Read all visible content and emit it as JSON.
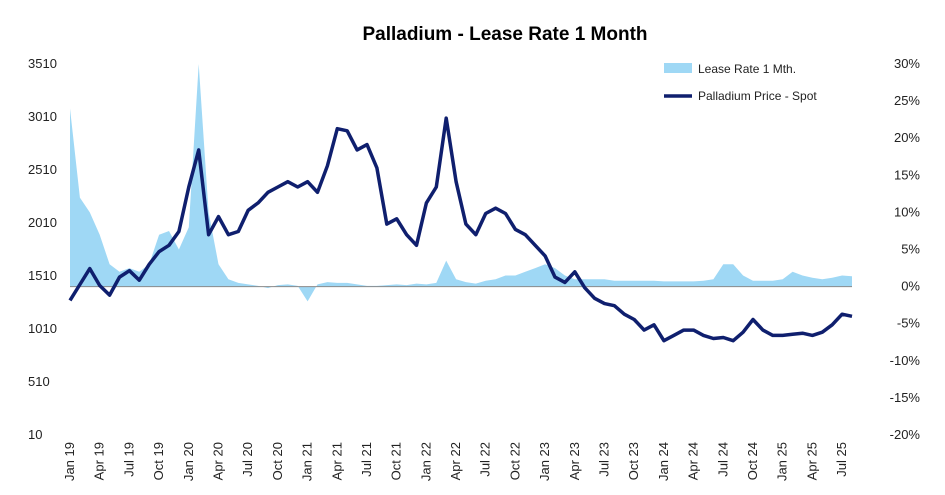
{
  "chart_data": {
    "type": "line",
    "title": "Palladium - Lease Rate 1 Month",
    "x_categories": [
      "Jan 19",
      "Apr 19",
      "Jul 19",
      "Oct 19",
      "Jan 20",
      "Apr 20",
      "Jul 20",
      "Oct 20",
      "Jan 21",
      "Apr 21",
      "Jul 21",
      "Oct 21",
      "Jan 22",
      "Apr 22",
      "Jul 22",
      "Oct 22",
      "Jan 23",
      "Apr 23",
      "Jul 23",
      "Oct 23",
      "Jan 24",
      "Apr 24",
      "Jul 24",
      "Oct 24",
      "Jan 25",
      "Apr 25",
      "Jul 25"
    ],
    "y_left": {
      "ticks": [
        "3510",
        "3010",
        "2510",
        "2010",
        "1510",
        "1010",
        "510",
        "10"
      ],
      "min": 10,
      "max": 3510
    },
    "y_right": {
      "ticks": [
        "30%",
        "25%",
        "20%",
        "15%",
        "10%",
        "5%",
        "0%",
        "-5%",
        "-10%",
        "-15%",
        "-20%"
      ],
      "min": -20,
      "max": 30,
      "unit": "%"
    },
    "legend": {
      "position": "top-right"
    },
    "series": [
      {
        "name": "Lease Rate 1 Mth.",
        "style": "area",
        "axis": "right",
        "color": "#9fd8f5",
        "points": [
          [
            "Jan 19",
            24.0
          ],
          [
            "Feb 19",
            12.0
          ],
          [
            "Mar 19",
            10.0
          ],
          [
            "Apr 19",
            7.0
          ],
          [
            "May 19",
            3.0
          ],
          [
            "Jun 19",
            2.0
          ],
          [
            "Jul 19",
            2.5
          ],
          [
            "Aug 19",
            2.0
          ],
          [
            "Sep 19",
            3.0
          ],
          [
            "Oct 19",
            7.0
          ],
          [
            "Nov 19",
            7.5
          ],
          [
            "Dec 19",
            5.0
          ],
          [
            "Jan 20",
            8.0
          ],
          [
            "Feb 20",
            30.0
          ],
          [
            "Mar 20",
            10.0
          ],
          [
            "Apr 20",
            3.0
          ],
          [
            "May 20",
            1.0
          ],
          [
            "Jun 20",
            0.5
          ],
          [
            "Jul 20",
            0.3
          ],
          [
            "Aug 20",
            0.1
          ],
          [
            "Sep 20",
            -0.2
          ],
          [
            "Oct 20",
            0.2
          ],
          [
            "Nov 20",
            0.3
          ],
          [
            "Dec 20",
            0.1
          ],
          [
            "Jan 21",
            -2.0
          ],
          [
            "Feb 21",
            0.3
          ],
          [
            "Mar 21",
            0.6
          ],
          [
            "Apr 21",
            0.5
          ],
          [
            "May 21",
            0.5
          ],
          [
            "Jun 21",
            0.3
          ],
          [
            "Jul 21",
            0.1
          ],
          [
            "Aug 21",
            0.1
          ],
          [
            "Sep 21",
            0.2
          ],
          [
            "Oct 21",
            0.3
          ],
          [
            "Nov 21",
            0.2
          ],
          [
            "Dec 21",
            0.4
          ],
          [
            "Jan 22",
            0.3
          ],
          [
            "Feb 22",
            0.5
          ],
          [
            "Mar 22",
            3.5
          ],
          [
            "Apr 22",
            1.0
          ],
          [
            "May 22",
            0.6
          ],
          [
            "Jun 22",
            0.4
          ],
          [
            "Jul 22",
            0.8
          ],
          [
            "Aug 22",
            1.0
          ],
          [
            "Sep 22",
            1.5
          ],
          [
            "Oct 22",
            1.5
          ],
          [
            "Nov 22",
            2.0
          ],
          [
            "Dec 22",
            2.5
          ],
          [
            "Jan 23",
            3.0
          ],
          [
            "Feb 23",
            2.5
          ],
          [
            "Mar 23",
            1.5
          ],
          [
            "Apr 23",
            1.0
          ],
          [
            "May 23",
            1.0
          ],
          [
            "Jun 23",
            1.0
          ],
          [
            "Jul 23",
            1.0
          ],
          [
            "Aug 23",
            0.8
          ],
          [
            "Sep 23",
            0.8
          ],
          [
            "Oct 23",
            0.8
          ],
          [
            "Nov 23",
            0.8
          ],
          [
            "Dec 23",
            0.8
          ],
          [
            "Jan 24",
            0.7
          ],
          [
            "Feb 24",
            0.7
          ],
          [
            "Mar 24",
            0.7
          ],
          [
            "Apr 24",
            0.7
          ],
          [
            "May 24",
            0.8
          ],
          [
            "Jun 24",
            1.0
          ],
          [
            "Jul 24",
            3.0
          ],
          [
            "Aug 24",
            3.0
          ],
          [
            "Sep 24",
            1.5
          ],
          [
            "Oct 24",
            0.8
          ],
          [
            "Nov 24",
            0.8
          ],
          [
            "Dec 24",
            0.8
          ],
          [
            "Jan 25",
            1.0
          ],
          [
            "Feb 25",
            2.0
          ],
          [
            "Mar 25",
            1.5
          ],
          [
            "Apr 25",
            1.2
          ],
          [
            "May 25",
            1.0
          ],
          [
            "Jun 25",
            1.2
          ],
          [
            "Jul 25",
            1.5
          ],
          [
            "Aug 25",
            1.4
          ]
        ]
      },
      {
        "name": "Palladium Price - Spot",
        "style": "line",
        "axis": "left",
        "color": "#0f1f6e",
        "points": [
          [
            "Jan 19",
            1280
          ],
          [
            "Feb 19",
            1430
          ],
          [
            "Mar 19",
            1580
          ],
          [
            "Apr 19",
            1420
          ],
          [
            "May 19",
            1330
          ],
          [
            "Jun 19",
            1500
          ],
          [
            "Jul 19",
            1560
          ],
          [
            "Aug 19",
            1470
          ],
          [
            "Sep 19",
            1620
          ],
          [
            "Oct 19",
            1740
          ],
          [
            "Nov 19",
            1800
          ],
          [
            "Dec 19",
            1930
          ],
          [
            "Jan 20",
            2350
          ],
          [
            "Feb 20",
            2700
          ],
          [
            "Mar 20",
            1900
          ],
          [
            "Apr 20",
            2070
          ],
          [
            "May 20",
            1900
          ],
          [
            "Jun 20",
            1930
          ],
          [
            "Jul 20",
            2130
          ],
          [
            "Aug 20",
            2200
          ],
          [
            "Sep 20",
            2300
          ],
          [
            "Oct 20",
            2350
          ],
          [
            "Nov 20",
            2400
          ],
          [
            "Dec 20",
            2350
          ],
          [
            "Jan 21",
            2400
          ],
          [
            "Feb 21",
            2300
          ],
          [
            "Mar 21",
            2550
          ],
          [
            "Apr 21",
            2900
          ],
          [
            "May 21",
            2880
          ],
          [
            "Jun 21",
            2700
          ],
          [
            "Jul 21",
            2750
          ],
          [
            "Aug 21",
            2530
          ],
          [
            "Sep 21",
            2000
          ],
          [
            "Oct 21",
            2050
          ],
          [
            "Nov 21",
            1900
          ],
          [
            "Dec 21",
            1800
          ],
          [
            "Jan 22",
            2200
          ],
          [
            "Feb 22",
            2350
          ],
          [
            "Mar 22",
            3000
          ],
          [
            "Apr 22",
            2400
          ],
          [
            "May 22",
            2000
          ],
          [
            "Jun 22",
            1900
          ],
          [
            "Jul 22",
            2100
          ],
          [
            "Aug 22",
            2150
          ],
          [
            "Sep 22",
            2100
          ],
          [
            "Oct 22",
            1950
          ],
          [
            "Nov 22",
            1900
          ],
          [
            "Dec 22",
            1800
          ],
          [
            "Jan 23",
            1700
          ],
          [
            "Feb 23",
            1500
          ],
          [
            "Mar 23",
            1450
          ],
          [
            "Apr 23",
            1550
          ],
          [
            "May 23",
            1400
          ],
          [
            "Jun 23",
            1300
          ],
          [
            "Jul 23",
            1250
          ],
          [
            "Aug 23",
            1230
          ],
          [
            "Sep 23",
            1150
          ],
          [
            "Oct 23",
            1100
          ],
          [
            "Nov 23",
            1000
          ],
          [
            "Dec 23",
            1050
          ],
          [
            "Jan 24",
            900
          ],
          [
            "Feb 24",
            950
          ],
          [
            "Mar 24",
            1000
          ],
          [
            "Apr 24",
            1000
          ],
          [
            "May 24",
            950
          ],
          [
            "Jun 24",
            920
          ],
          [
            "Jul 24",
            930
          ],
          [
            "Aug 24",
            900
          ],
          [
            "Sep 24",
            980
          ],
          [
            "Oct 24",
            1100
          ],
          [
            "Nov 24",
            1000
          ],
          [
            "Dec 24",
            950
          ],
          [
            "Jan 25",
            950
          ],
          [
            "Feb 25",
            960
          ],
          [
            "Mar 25",
            970
          ],
          [
            "Apr 25",
            950
          ],
          [
            "May 25",
            980
          ],
          [
            "Jun 25",
            1050
          ],
          [
            "Jul 25",
            1150
          ],
          [
            "Aug 25",
            1130
          ]
        ]
      }
    ]
  }
}
